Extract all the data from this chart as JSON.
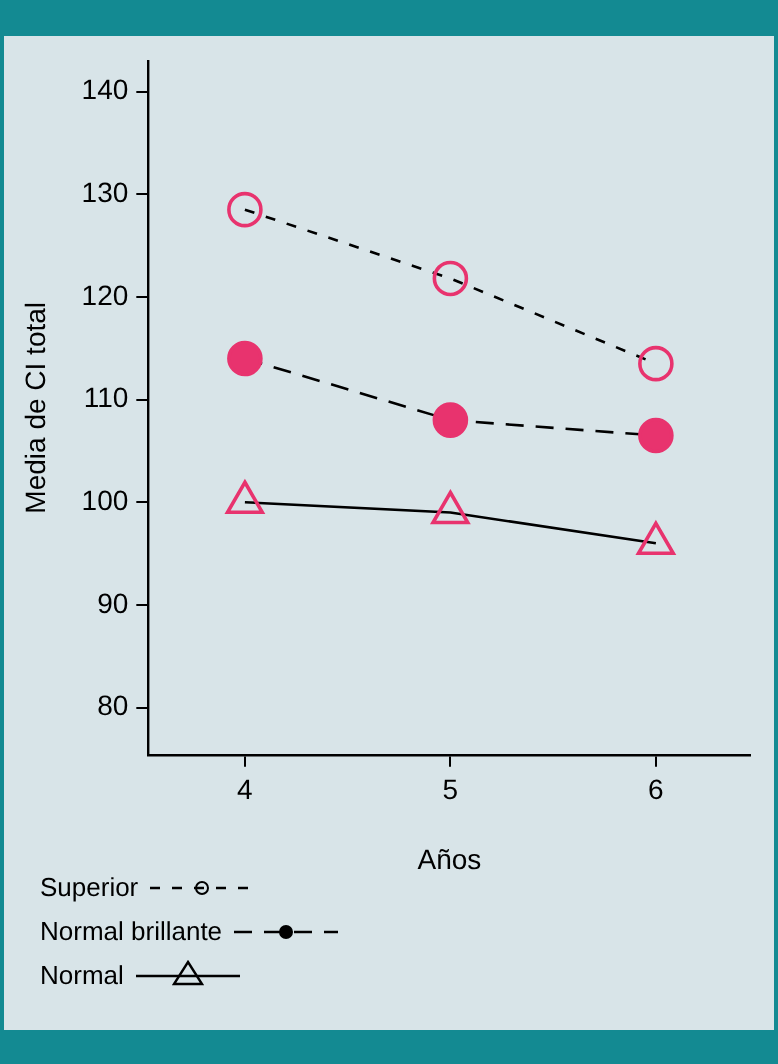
{
  "chart_data": {
    "type": "line",
    "xlabel": "Años",
    "ylabel": "Media de CI total",
    "x": [
      4,
      5,
      6
    ],
    "xlim": [
      3.53,
      6.46
    ],
    "xticks": [
      4,
      5,
      6
    ],
    "ylim": [
      75.4,
      143
    ],
    "yticks": [
      80,
      90,
      100,
      110,
      120,
      130,
      140
    ],
    "grid": false,
    "legend": "bottom left",
    "series": [
      {
        "name": "Superior",
        "color": "#e8336e",
        "values": [
          128.5,
          121.8,
          113.5
        ],
        "marker": "circle",
        "line_style": "dotted"
      },
      {
        "name": "Normal brillante",
        "color": "#e8336e",
        "values": [
          114,
          108,
          106.5
        ],
        "marker": "circle",
        "line_style": "dashed"
      },
      {
        "name": "Normal",
        "color": "#e8336e",
        "values": [
          100,
          99,
          96
        ],
        "marker": "triangle",
        "line_style": "solid"
      }
    ]
  }
}
